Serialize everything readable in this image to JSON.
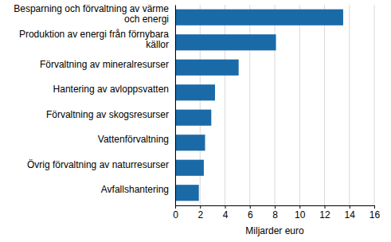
{
  "chart_data": {
    "type": "bar",
    "orientation": "horizontal",
    "categories": [
      "Besparning och förvaltning av värme och energi",
      "Produktion av energi från förnybara källor",
      "Förvaltning av mineralresurser",
      "Hantering av avloppsvatten",
      "Förvaltning av skogsresurser",
      "Vattenförvaltning",
      "Övrig förvaltning av naturresurser",
      "Avfallshantering"
    ],
    "values": [
      13.5,
      8.1,
      5.1,
      3.2,
      2.9,
      2.4,
      2.3,
      1.9
    ],
    "color": "#1b6aa8",
    "x_label": "Miljarder euro",
    "xlim": [
      0,
      16
    ],
    "xticks": [
      0,
      2,
      4,
      6,
      8,
      10,
      12,
      14,
      16
    ],
    "grid": true
  }
}
